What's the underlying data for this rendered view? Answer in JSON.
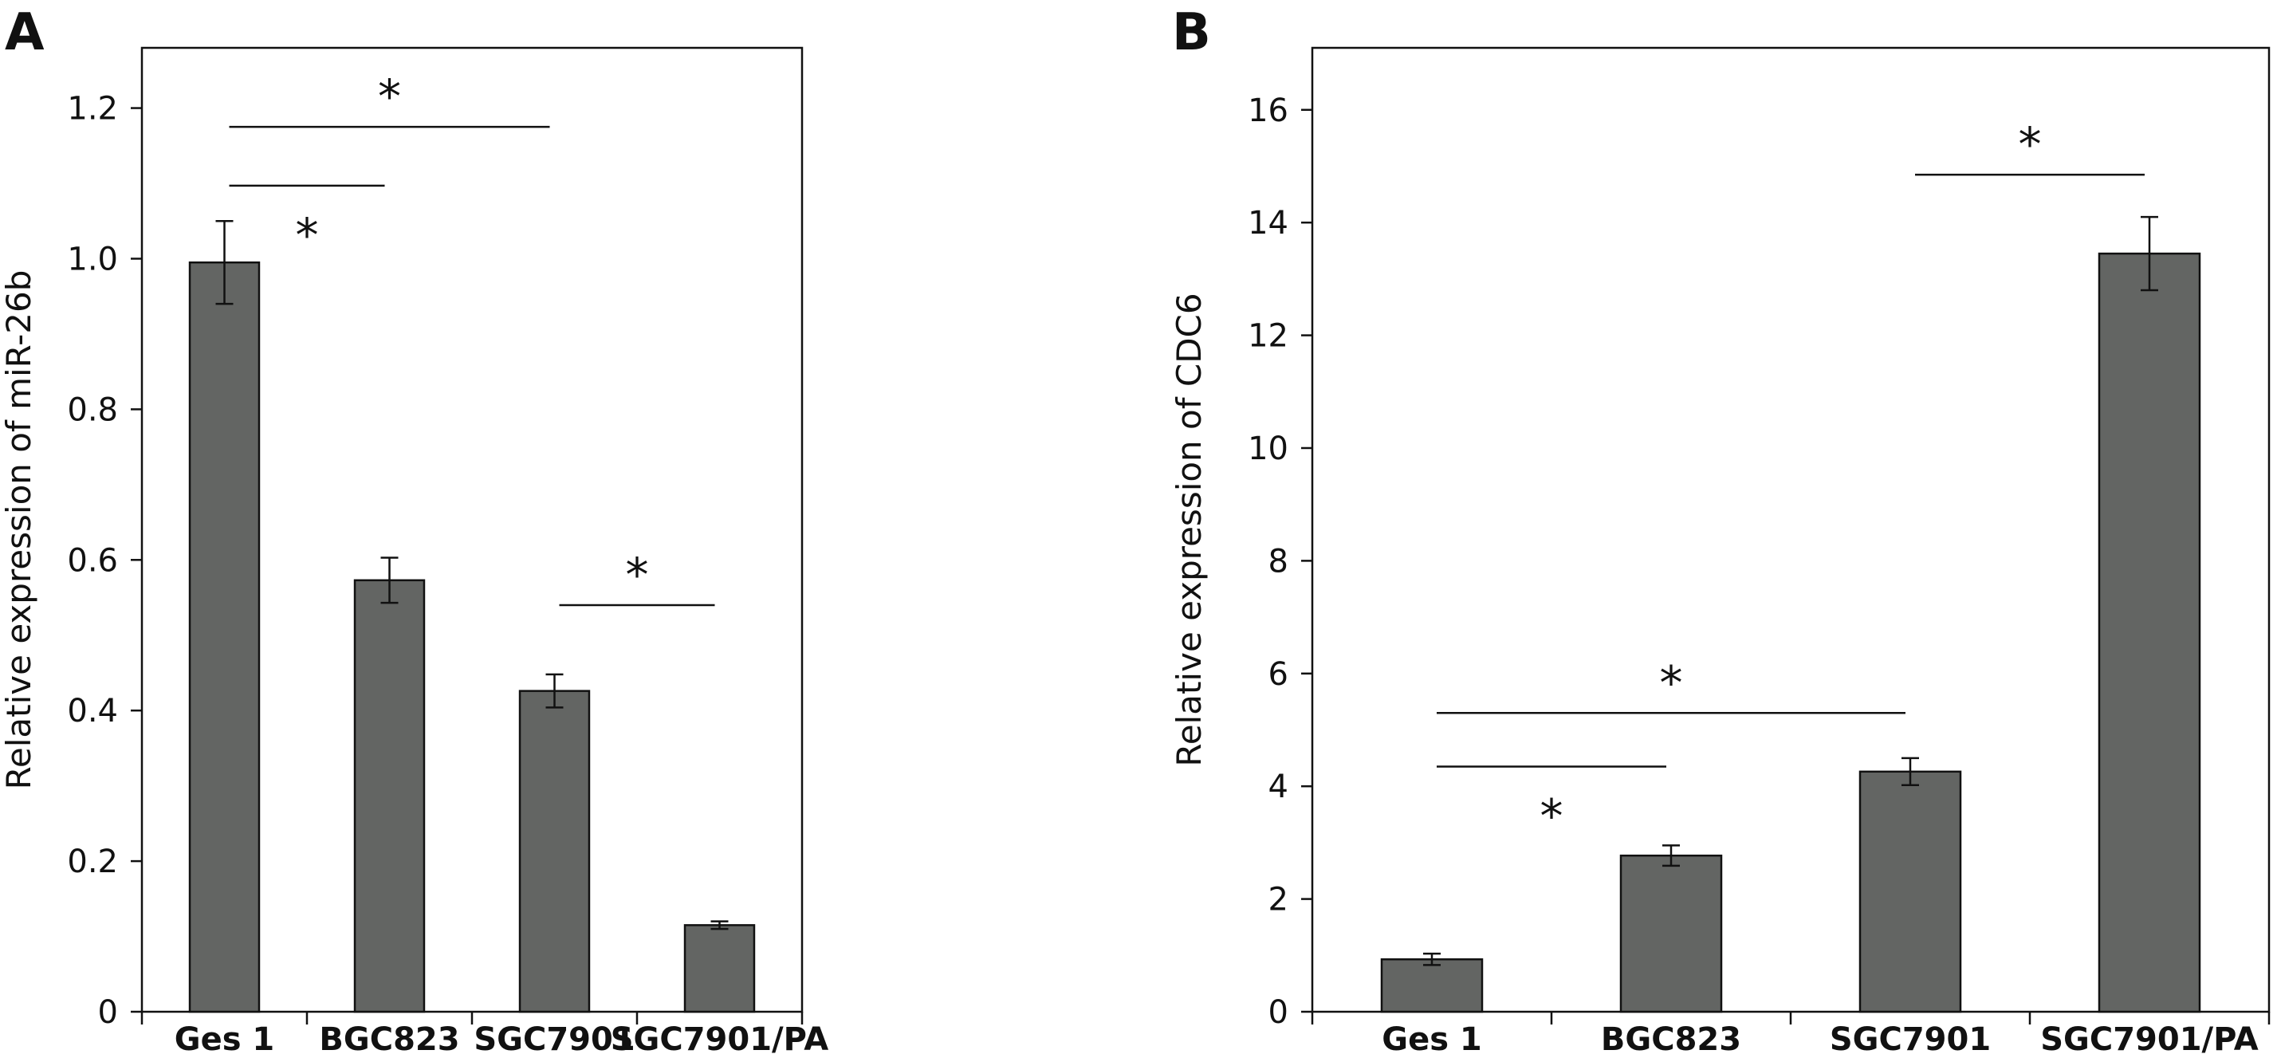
{
  "chart_data": [
    {
      "type": "bar",
      "panel_label": "A",
      "categories": [
        "Ges 1",
        "BGC823",
        "SGC7901",
        "SGC7901/PA"
      ],
      "series": [
        {
          "values": [
            0.995,
            0.573,
            0.426,
            0.115
          ],
          "errors": [
            0.055,
            0.03,
            0.022,
            0.005
          ]
        }
      ],
      "xlabel": "",
      "ylabel": "Relative expression of miR-26b",
      "ylim": [
        0,
        1.28
      ],
      "yticks": [
        0,
        0.2,
        0.4,
        0.6,
        0.8,
        1.0,
        1.2
      ],
      "ytick_labels": [
        "0",
        "0.2",
        "0.4",
        "0.6",
        "0.8",
        "1.0",
        "1.2"
      ],
      "grid": false,
      "bar_color": "#636563",
      "significance": [
        {
          "from": 0,
          "to": 2,
          "y": 1.175,
          "label": "*",
          "label_pos": "above"
        },
        {
          "from": 0,
          "to": 1,
          "y": 1.097,
          "label": "*",
          "label_pos": "below"
        },
        {
          "from": 2,
          "to": 3,
          "y": 0.54,
          "label": "*",
          "label_pos": "above"
        }
      ]
    },
    {
      "type": "bar",
      "panel_label": "B",
      "categories": [
        "Ges 1",
        "BGC823",
        "SGC7901",
        "SGC7901/PA"
      ],
      "series": [
        {
          "values": [
            0.93,
            2.77,
            4.26,
            13.45
          ],
          "errors": [
            0.1,
            0.18,
            0.24,
            0.65
          ]
        }
      ],
      "xlabel": "",
      "ylabel": "Relative expression of CDC6",
      "ylim": [
        0,
        17.1
      ],
      "yticks": [
        0,
        2,
        4,
        6,
        8,
        10,
        12,
        14,
        16
      ],
      "ytick_labels": [
        "0",
        "2",
        "4",
        "6",
        "8",
        "10",
        "12",
        "14",
        "16"
      ],
      "grid": false,
      "bar_color": "#636563",
      "significance": [
        {
          "from": 2,
          "to": 3,
          "y": 14.85,
          "label": "*",
          "label_pos": "above"
        },
        {
          "from": 0,
          "to": 2,
          "y": 5.3,
          "label": "*",
          "label_pos": "above"
        },
        {
          "from": 0,
          "to": 1,
          "y": 4.35,
          "label": "*",
          "label_pos": "below"
        }
      ]
    }
  ]
}
